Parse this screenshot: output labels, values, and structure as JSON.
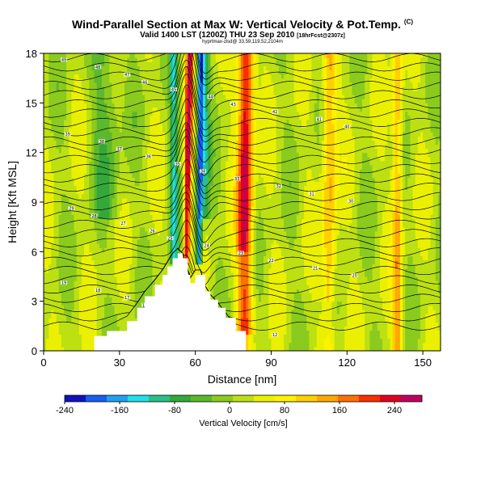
{
  "header": {
    "title": "Wind-Parallel Section at Max W: Vertical Velocity & Pot.Temp.",
    "title_tag": "(C)",
    "subtitle_main": "Valid 1400 LST (1200Z) THU 23 Sep 2010",
    "subtitle_small": "[18hrFcst@2307z]",
    "credit": "hyprtmax-zlsd@ 33.59,119.52,2104m"
  },
  "chart_data": {
    "type": "heatmap",
    "title": "Wind-Parallel Section at Max W: Vertical Velocity & Pot.Temp.",
    "xlabel": "Distance [nm]",
    "ylabel": "Height [Kft MSL]",
    "xlim": [
      0,
      157
    ],
    "ylim": [
      0,
      18
    ],
    "xticks": [
      0,
      30,
      60,
      90,
      120,
      150
    ],
    "yticks": [
      0,
      3,
      6,
      9,
      12,
      15,
      18
    ],
    "colorbar": {
      "label": "Vertical Velocity [cm/s]",
      "range": [
        -240,
        280
      ],
      "ticks": [
        -240,
        -160,
        -80,
        0,
        80,
        160,
        240
      ],
      "colors": [
        "#1010c0",
        "#1a5cf0",
        "#20a0f0",
        "#20e0e8",
        "#28c088",
        "#34a83a",
        "#5cb82c",
        "#8acb1e",
        "#bce012",
        "#eaf000",
        "#fff200",
        "#ffd000",
        "#ffa800",
        "#ff7000",
        "#f83000",
        "#e00020",
        "#c00060"
      ]
    },
    "terrain_profile": {
      "x": [
        0,
        17,
        20,
        25,
        33,
        37,
        40,
        44,
        47,
        49,
        51,
        53,
        55,
        57,
        58,
        60,
        62,
        64,
        66,
        69,
        72,
        76,
        80,
        157
      ],
      "top_kft": [
        0,
        0,
        0.9,
        1.2,
        1.8,
        2.6,
        3.3,
        4.0,
        4.6,
        5.1,
        5.6,
        5.9,
        5.6,
        4.6,
        4.1,
        4.6,
        4.6,
        3.6,
        3.1,
        2.6,
        2.0,
        1.2,
        0,
        0
      ]
    },
    "updraft_core": {
      "x_nm": 56.5,
      "max_cm_s": 280
    },
    "downdraft_core": {
      "x_nm": 61.5,
      "min_cm_s": -240
    },
    "contour_labels": [
      "49",
      "48",
      "47",
      "46",
      "45",
      "44",
      "43",
      "42",
      "41",
      "40",
      "39",
      "38",
      "37",
      "36",
      "35",
      "34",
      "33",
      "32",
      "31",
      "30",
      "29",
      "28",
      "27",
      "26",
      "25",
      "24",
      "23",
      "22",
      "21",
      "20",
      "19",
      "18",
      "17",
      "16",
      "15",
      "14",
      "13",
      "12"
    ]
  }
}
